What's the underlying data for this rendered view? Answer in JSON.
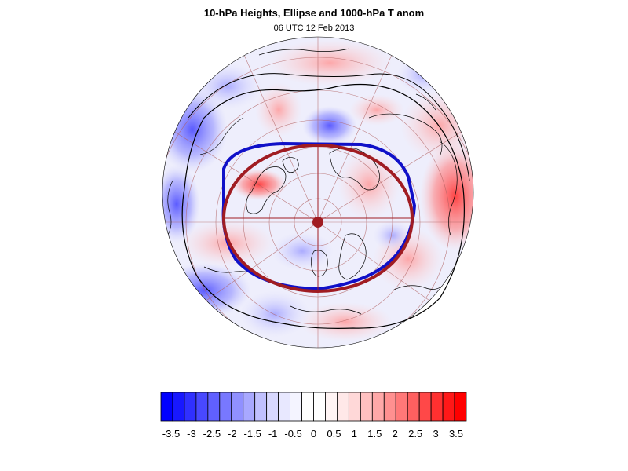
{
  "header": {
    "title": "10-hPa Heights, Ellipse and 1000-hPa T anom",
    "subtitle": "06 UTC 12 Feb 2013"
  },
  "map": {
    "projection": "orthographic (polar)",
    "anomaly_field": "1000-hPa temperature anomaly",
    "overlays": [
      "10-hPa height contours",
      "fitted vortex ellipse",
      "coastlines",
      "lat/lon graticule"
    ],
    "colors": {
      "ellipse": "#a01c22",
      "height_contour_inner": "#1010c8",
      "height_contour_outer": "#000000",
      "graticule": "#b06060",
      "coastline": "#000000"
    }
  },
  "colorbar": {
    "labels": [
      "-3.5",
      "-3",
      "-2.5",
      "-2",
      "-1.5",
      "-1",
      "-0.5",
      "0",
      "0.5",
      "1",
      "1.5",
      "2",
      "2.5",
      "3",
      "3.5"
    ],
    "colors": [
      "#0000ff",
      "#1818ff",
      "#3030ff",
      "#4848ff",
      "#6060ff",
      "#7878ff",
      "#9090ff",
      "#a8a8ff",
      "#c0c0ff",
      "#d8d8ff",
      "#e8e8ff",
      "#f4f4ff",
      "#ffffff",
      "#ffffff",
      "#fff4f4",
      "#ffe8e8",
      "#ffd8d8",
      "#ffc0c0",
      "#ffa8a8",
      "#ff9090",
      "#ff7878",
      "#ff6060",
      "#ff4848",
      "#ff3030",
      "#ff1818",
      "#ff0000"
    ]
  }
}
